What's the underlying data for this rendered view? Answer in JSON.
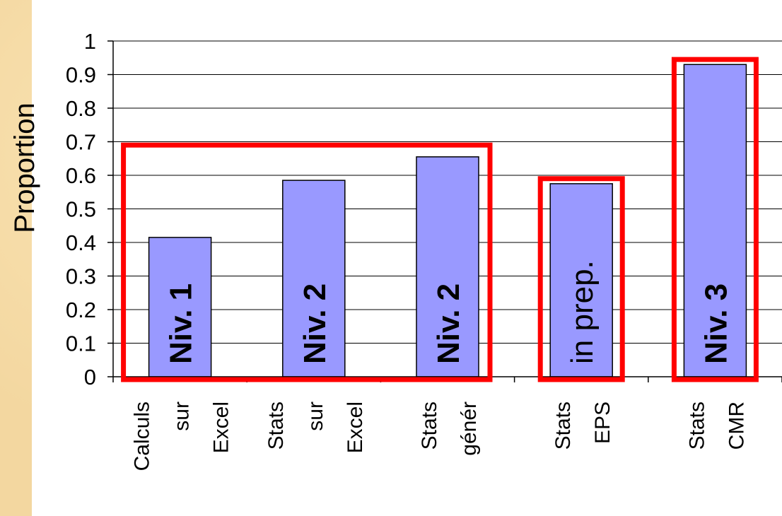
{
  "chart_data": {
    "type": "bar",
    "ylabel": "Proportion",
    "ylim": [
      0,
      1
    ],
    "yticks": [
      "0",
      "0.1",
      "0.2",
      "0.3",
      "0.4",
      "0.5",
      "0.6",
      "0.7",
      "0.8",
      "0.9",
      "1"
    ],
    "categories": [
      [
        "Calculs",
        "sur",
        "Excel"
      ],
      [
        "Stats",
        "sur",
        "Excel"
      ],
      [
        "Stats",
        "génér"
      ],
      [
        "Stats",
        "EPS"
      ],
      [
        "Stats",
        "CMR"
      ]
    ],
    "values": [
      0.415,
      0.585,
      0.655,
      0.575,
      0.93
    ],
    "bar_color": "#9999ff",
    "bar_labels": [
      {
        "text": "Niv. 1",
        "bold": true
      },
      {
        "text": "Niv. 2",
        "bold": true
      },
      {
        "text": "Niv. 2",
        "bold": true
      },
      {
        "text": "in prep.",
        "bold": false
      },
      {
        "text": "Niv. 3",
        "bold": true
      }
    ],
    "highlight_color": "#ff0000",
    "highlight_groups": [
      {
        "from": 0,
        "to": 2,
        "top": 0.69
      },
      {
        "from": 3,
        "to": 3,
        "top": 0.59
      },
      {
        "from": 4,
        "to": 4,
        "top": 0.945
      }
    ]
  }
}
